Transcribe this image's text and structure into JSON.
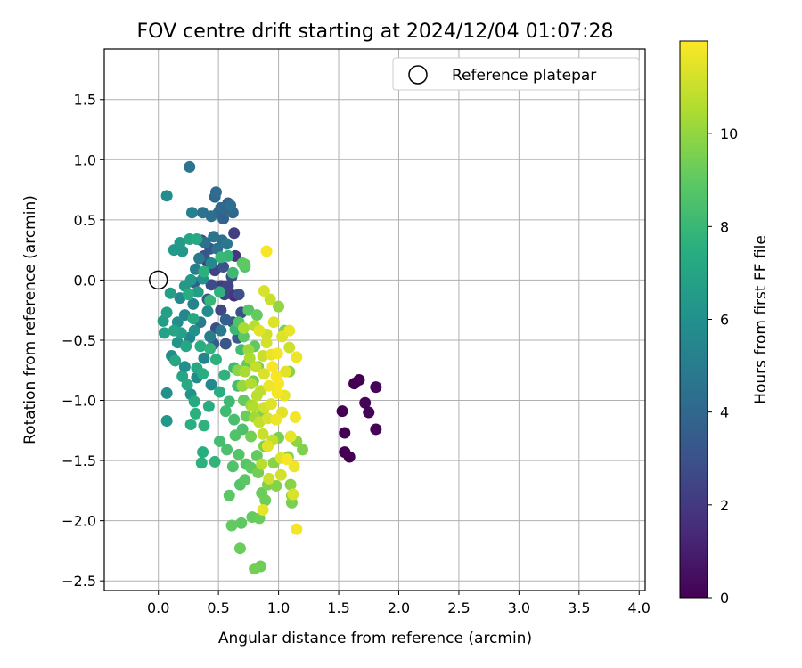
{
  "chart_data": {
    "type": "scatter",
    "title": "FOV centre drift starting at 2024/12/04 01:07:28",
    "xlabel": "Angular distance from reference (arcmin)",
    "ylabel": "Rotation from reference (arcmin)",
    "xlim": [
      -0.45,
      4.05
    ],
    "ylim": [
      -2.58,
      1.92
    ],
    "xticks": [
      0.0,
      0.5,
      1.0,
      1.5,
      2.0,
      2.5,
      3.0,
      3.5,
      4.0
    ],
    "xtick_labels": [
      "0.0",
      "0.5",
      "1.0",
      "1.5",
      "2.0",
      "2.5",
      "3.0",
      "3.5",
      "4.0"
    ],
    "yticks": [
      -2.5,
      -2.0,
      -1.5,
      -1.0,
      -0.5,
      0.0,
      0.5,
      1.0,
      1.5
    ],
    "ytick_labels": [
      "−2.5",
      "−2.0",
      "−1.5",
      "−1.0",
      "−0.5",
      "0.0",
      "0.5",
      "1.0",
      "1.5"
    ],
    "grid": true,
    "legend": {
      "position": "top-right",
      "entries": [
        "Reference platepar"
      ]
    },
    "reference_point": {
      "x": 0.0,
      "y": 0.0,
      "label": "Reference platepar",
      "marker": "open-circle"
    },
    "colorbar": {
      "label": "Hours from first FF file",
      "range": [
        0,
        12
      ],
      "ticks": [
        0,
        2,
        4,
        6,
        8,
        10
      ],
      "tick_labels": [
        "0",
        "2",
        "4",
        "6",
        "8",
        "10"
      ],
      "colormap": "viridis"
    },
    "points": [
      {
        "x": 1.53,
        "y": -1.09,
        "c": 0.0
      },
      {
        "x": 1.55,
        "y": -1.27,
        "c": 0.0
      },
      {
        "x": 1.55,
        "y": -1.43,
        "c": 0.0
      },
      {
        "x": 1.59,
        "y": -1.47,
        "c": 0.0
      },
      {
        "x": 1.63,
        "y": -0.86,
        "c": 0.0
      },
      {
        "x": 1.67,
        "y": -0.83,
        "c": 0.0
      },
      {
        "x": 1.72,
        "y": -1.02,
        "c": 0.1
      },
      {
        "x": 1.75,
        "y": -1.1,
        "c": 0.1
      },
      {
        "x": 1.81,
        "y": -0.89,
        "c": 0.1
      },
      {
        "x": 1.81,
        "y": -1.24,
        "c": 0.1
      },
      {
        "x": 0.63,
        "y": -0.13,
        "c": 1.5
      },
      {
        "x": 0.59,
        "y": -0.11,
        "c": 1.8
      },
      {
        "x": 0.52,
        "y": -0.05,
        "c": 2.1
      },
      {
        "x": 0.47,
        "y": 0.08,
        "c": 2.3
      },
      {
        "x": 0.55,
        "y": -0.12,
        "c": 2.4
      },
      {
        "x": 0.63,
        "y": 0.39,
        "c": 2.2
      },
      {
        "x": 0.64,
        "y": 0.2,
        "c": 1.9
      },
      {
        "x": 0.52,
        "y": -0.25,
        "c": 2.6
      },
      {
        "x": 0.48,
        "y": -0.4,
        "c": 2.8
      },
      {
        "x": 0.58,
        "y": -0.05,
        "c": 2.5
      },
      {
        "x": 0.41,
        "y": 0.15,
        "c": 2.2
      },
      {
        "x": 0.44,
        "y": -0.04,
        "c": 2.7
      },
      {
        "x": 0.67,
        "y": -0.12,
        "c": 2.9
      },
      {
        "x": 0.69,
        "y": -0.27,
        "c": 2.9
      },
      {
        "x": 0.36,
        "y": 0.33,
        "c": 3.0
      },
      {
        "x": 0.43,
        "y": 0.26,
        "c": 3.2
      },
      {
        "x": 0.38,
        "y": 0.2,
        "c": 3.1
      },
      {
        "x": 0.54,
        "y": 0.11,
        "c": 3.0
      },
      {
        "x": 0.61,
        "y": 0.03,
        "c": 2.7
      },
      {
        "x": 0.62,
        "y": -0.35,
        "c": 3.3
      },
      {
        "x": 0.46,
        "y": -0.53,
        "c": 3.4
      },
      {
        "x": 0.56,
        "y": -0.53,
        "c": 3.2
      },
      {
        "x": 0.66,
        "y": -0.48,
        "c": 3.5
      },
      {
        "x": 0.56,
        "y": -0.33,
        "c": 3.6
      },
      {
        "x": 0.3,
        "y": -0.02,
        "c": 3.6
      },
      {
        "x": 0.41,
        "y": -0.16,
        "c": 3.4
      },
      {
        "x": 0.5,
        "y": 0.56,
        "c": 3.8
      },
      {
        "x": 0.55,
        "y": 0.59,
        "c": 3.9
      },
      {
        "x": 0.58,
        "y": 0.64,
        "c": 3.7
      },
      {
        "x": 0.47,
        "y": 0.69,
        "c": 4.0
      },
      {
        "x": 0.48,
        "y": 0.73,
        "c": 4.2
      },
      {
        "x": 0.52,
        "y": 0.6,
        "c": 4.1
      },
      {
        "x": 0.54,
        "y": 0.51,
        "c": 3.8
      },
      {
        "x": 0.62,
        "y": 0.56,
        "c": 4.0
      },
      {
        "x": 0.6,
        "y": 0.62,
        "c": 4.3
      },
      {
        "x": 0.44,
        "y": 0.53,
        "c": 4.4
      },
      {
        "x": 0.37,
        "y": 0.56,
        "c": 4.5
      },
      {
        "x": 0.26,
        "y": 0.94,
        "c": 4.7
      },
      {
        "x": 0.46,
        "y": 0.36,
        "c": 4.6
      },
      {
        "x": 0.39,
        "y": 0.31,
        "c": 4.4
      },
      {
        "x": 0.53,
        "y": 0.33,
        "c": 4.3
      },
      {
        "x": 0.49,
        "y": 0.26,
        "c": 4.5
      },
      {
        "x": 0.57,
        "y": 0.3,
        "c": 4.8
      },
      {
        "x": 0.34,
        "y": 0.18,
        "c": 4.9
      },
      {
        "x": 0.28,
        "y": 0.56,
        "c": 5.2
      },
      {
        "x": 0.07,
        "y": 0.7,
        "c": 5.8
      },
      {
        "x": 0.31,
        "y": 0.09,
        "c": 5.1
      },
      {
        "x": 0.35,
        "y": -0.35,
        "c": 5.0
      },
      {
        "x": 0.29,
        "y": -0.2,
        "c": 5.3
      },
      {
        "x": 0.43,
        "y": -0.47,
        "c": 5.1
      },
      {
        "x": 0.22,
        "y": -0.29,
        "c": 5.5
      },
      {
        "x": 0.18,
        "y": -0.15,
        "c": 5.6
      },
      {
        "x": 0.52,
        "y": -0.42,
        "c": 4.9
      },
      {
        "x": 0.26,
        "y": -0.48,
        "c": 5.4
      },
      {
        "x": 0.11,
        "y": -0.63,
        "c": 5.8
      },
      {
        "x": 0.07,
        "y": -0.94,
        "c": 6.0
      },
      {
        "x": 0.07,
        "y": -1.17,
        "c": 6.3
      },
      {
        "x": 0.16,
        "y": -0.35,
        "c": 5.9
      },
      {
        "x": 0.38,
        "y": -0.65,
        "c": 5.4
      },
      {
        "x": 0.32,
        "y": -0.81,
        "c": 5.7
      },
      {
        "x": 0.22,
        "y": -0.72,
        "c": 5.9
      },
      {
        "x": 0.27,
        "y": -0.95,
        "c": 6.1
      },
      {
        "x": 0.44,
        "y": -0.87,
        "c": 5.6
      },
      {
        "x": 0.16,
        "y": -0.52,
        "c": 6.2
      },
      {
        "x": 0.3,
        "y": -0.42,
        "c": 6.0
      },
      {
        "x": 0.41,
        "y": -0.26,
        "c": 5.8
      },
      {
        "x": 0.44,
        "y": 0.14,
        "c": 5.6
      },
      {
        "x": 0.2,
        "y": 0.24,
        "c": 6.3
      },
      {
        "x": 0.13,
        "y": 0.25,
        "c": 6.4
      },
      {
        "x": 0.18,
        "y": 0.31,
        "c": 6.5
      },
      {
        "x": 0.27,
        "y": 0.0,
        "c": 6.5
      },
      {
        "x": 0.22,
        "y": -0.05,
        "c": 6.4
      },
      {
        "x": 0.37,
        "y": 0.01,
        "c": 6.1
      },
      {
        "x": 0.33,
        "y": -0.1,
        "c": 6.6
      },
      {
        "x": 0.1,
        "y": -0.11,
        "c": 6.7
      },
      {
        "x": 0.07,
        "y": -0.27,
        "c": 6.8
      },
      {
        "x": 0.04,
        "y": -0.34,
        "c": 6.6
      },
      {
        "x": 0.05,
        "y": -0.44,
        "c": 6.9
      },
      {
        "x": 0.13,
        "y": -0.42,
        "c": 7.0
      },
      {
        "x": 0.19,
        "y": -0.44,
        "c": 6.8
      },
      {
        "x": 0.23,
        "y": -0.55,
        "c": 7.1
      },
      {
        "x": 0.14,
        "y": -0.67,
        "c": 7.2
      },
      {
        "x": 0.2,
        "y": -0.8,
        "c": 7.0
      },
      {
        "x": 0.24,
        "y": -0.87,
        "c": 7.3
      },
      {
        "x": 0.32,
        "y": -0.73,
        "c": 7.2
      },
      {
        "x": 0.37,
        "y": -0.78,
        "c": 7.4
      },
      {
        "x": 0.3,
        "y": -1.01,
        "c": 7.3
      },
      {
        "x": 0.27,
        "y": -1.2,
        "c": 7.5
      },
      {
        "x": 0.31,
        "y": -1.11,
        "c": 7.6
      },
      {
        "x": 0.42,
        "y": -1.05,
        "c": 7.4
      },
      {
        "x": 0.38,
        "y": -1.21,
        "c": 7.7
      },
      {
        "x": 0.37,
        "y": -1.43,
        "c": 7.5
      },
      {
        "x": 0.36,
        "y": -1.52,
        "c": 7.6
      },
      {
        "x": 0.47,
        "y": -1.51,
        "c": 7.8
      },
      {
        "x": 0.51,
        "y": -0.93,
        "c": 7.5
      },
      {
        "x": 0.55,
        "y": -0.79,
        "c": 7.7
      },
      {
        "x": 0.48,
        "y": -0.66,
        "c": 7.6
      },
      {
        "x": 0.43,
        "y": -0.57,
        "c": 7.8
      },
      {
        "x": 0.35,
        "y": -0.55,
        "c": 7.5
      },
      {
        "x": 0.29,
        "y": -0.32,
        "c": 7.2
      },
      {
        "x": 0.25,
        "y": -0.12,
        "c": 7.4
      },
      {
        "x": 0.26,
        "y": 0.34,
        "c": 7.0
      },
      {
        "x": 0.32,
        "y": 0.34,
        "c": 7.3
      },
      {
        "x": 0.38,
        "y": 0.07,
        "c": 7.6
      },
      {
        "x": 0.43,
        "y": -0.17,
        "c": 7.9
      },
      {
        "x": 0.51,
        "y": -0.1,
        "c": 7.7
      },
      {
        "x": 0.58,
        "y": 0.2,
        "c": 7.9
      },
      {
        "x": 0.52,
        "y": 0.19,
        "c": 8.0
      },
      {
        "x": 0.62,
        "y": 0.06,
        "c": 8.1
      },
      {
        "x": 0.64,
        "y": -0.41,
        "c": 8.0
      },
      {
        "x": 0.69,
        "y": -0.58,
        "c": 8.2
      },
      {
        "x": 0.63,
        "y": -0.73,
        "c": 8.1
      },
      {
        "x": 0.66,
        "y": -0.88,
        "c": 8.3
      },
      {
        "x": 0.59,
        "y": -1.01,
        "c": 8.1
      },
      {
        "x": 0.63,
        "y": -1.16,
        "c": 8.4
      },
      {
        "x": 0.56,
        "y": -1.09,
        "c": 8.2
      },
      {
        "x": 0.51,
        "y": -1.34,
        "c": 8.3
      },
      {
        "x": 0.57,
        "y": -1.41,
        "c": 8.5
      },
      {
        "x": 0.64,
        "y": -1.29,
        "c": 8.6
      },
      {
        "x": 0.7,
        "y": -1.24,
        "c": 8.5
      },
      {
        "x": 0.67,
        "y": -1.45,
        "c": 8.7
      },
      {
        "x": 0.62,
        "y": -1.55,
        "c": 8.6
      },
      {
        "x": 0.73,
        "y": -1.53,
        "c": 8.8
      },
      {
        "x": 0.59,
        "y": -1.79,
        "c": 8.9
      },
      {
        "x": 0.68,
        "y": -1.7,
        "c": 8.7
      },
      {
        "x": 0.72,
        "y": -1.66,
        "c": 8.9
      },
      {
        "x": 0.77,
        "y": -1.56,
        "c": 9.0
      },
      {
        "x": 0.82,
        "y": -1.46,
        "c": 9.1
      },
      {
        "x": 0.86,
        "y": -1.77,
        "c": 9.2
      },
      {
        "x": 0.89,
        "y": -1.83,
        "c": 9.3
      },
      {
        "x": 0.84,
        "y": -1.98,
        "c": 9.2
      },
      {
        "x": 0.78,
        "y": -1.97,
        "c": 9.1
      },
      {
        "x": 0.69,
        "y": -2.02,
        "c": 9.0
      },
      {
        "x": 0.61,
        "y": -2.04,
        "c": 9.1
      },
      {
        "x": 0.68,
        "y": -2.23,
        "c": 9.2
      },
      {
        "x": 0.85,
        "y": -2.38,
        "c": 9.3
      },
      {
        "x": 0.8,
        "y": -2.4,
        "c": 9.4
      },
      {
        "x": 0.83,
        "y": -1.6,
        "c": 9.4
      },
      {
        "x": 0.91,
        "y": -1.7,
        "c": 9.6
      },
      {
        "x": 0.98,
        "y": -1.71,
        "c": 9.7
      },
      {
        "x": 1.1,
        "y": -1.7,
        "c": 9.8
      },
      {
        "x": 1.11,
        "y": -1.79,
        "c": 9.9
      },
      {
        "x": 1.11,
        "y": -1.85,
        "c": 9.5
      },
      {
        "x": 1.2,
        "y": -1.41,
        "c": 9.6
      },
      {
        "x": 1.15,
        "y": -1.34,
        "c": 9.9
      },
      {
        "x": 1.08,
        "y": -1.47,
        "c": 9.7
      },
      {
        "x": 1.0,
        "y": -1.31,
        "c": 9.5
      },
      {
        "x": 0.96,
        "y": -1.52,
        "c": 9.8
      },
      {
        "x": 0.88,
        "y": -1.38,
        "c": 9.6
      },
      {
        "x": 0.77,
        "y": -1.3,
        "c": 9.4
      },
      {
        "x": 0.73,
        "y": -1.13,
        "c": 9.2
      },
      {
        "x": 0.71,
        "y": -1.0,
        "c": 9.1
      },
      {
        "x": 0.79,
        "y": -0.84,
        "c": 9.3
      },
      {
        "x": 0.74,
        "y": -0.7,
        "c": 9.0
      },
      {
        "x": 0.71,
        "y": -0.47,
        "c": 8.9
      },
      {
        "x": 0.8,
        "y": -0.55,
        "c": 9.0
      },
      {
        "x": 0.75,
        "y": -0.25,
        "c": 8.8
      },
      {
        "x": 0.82,
        "y": -0.29,
        "c": 9.1
      },
      {
        "x": 0.67,
        "y": -0.35,
        "c": 8.6
      },
      {
        "x": 0.72,
        "y": 0.11,
        "c": 8.7
      },
      {
        "x": 0.7,
        "y": 0.14,
        "c": 8.9
      },
      {
        "x": 0.72,
        "y": 0.13,
        "c": 9.0
      },
      {
        "x": 0.83,
        "y": -0.72,
        "c": 9.5
      },
      {
        "x": 0.87,
        "y": -1.09,
        "c": 9.6
      },
      {
        "x": 1.05,
        "y": -0.42,
        "c": 9.7
      },
      {
        "x": 1.09,
        "y": -0.76,
        "c": 9.8
      },
      {
        "x": 1.0,
        "y": -0.22,
        "c": 10.0
      },
      {
        "x": 0.9,
        "y": 0.24,
        "c": 11.9
      },
      {
        "x": 0.88,
        "y": -0.09,
        "c": 11.3
      },
      {
        "x": 0.93,
        "y": -0.16,
        "c": 11.0
      },
      {
        "x": 0.84,
        "y": -0.42,
        "c": 11.5
      },
      {
        "x": 0.9,
        "y": -0.52,
        "c": 11.2
      },
      {
        "x": 0.8,
        "y": -0.38,
        "c": 10.7
      },
      {
        "x": 0.76,
        "y": -0.65,
        "c": 10.5
      },
      {
        "x": 0.81,
        "y": -0.72,
        "c": 10.9
      },
      {
        "x": 0.88,
        "y": -0.78,
        "c": 11.3
      },
      {
        "x": 0.94,
        "y": -0.62,
        "c": 11.6
      },
      {
        "x": 0.99,
        "y": -0.61,
        "c": 11.8
      },
      {
        "x": 1.03,
        "y": -0.47,
        "c": 11.4
      },
      {
        "x": 1.09,
        "y": -0.56,
        "c": 11.1
      },
      {
        "x": 1.15,
        "y": -0.64,
        "c": 11.7
      },
      {
        "x": 1.06,
        "y": -0.76,
        "c": 11.5
      },
      {
        "x": 0.98,
        "y": -0.8,
        "c": 11.9
      },
      {
        "x": 0.92,
        "y": -0.88,
        "c": 11.7
      },
      {
        "x": 0.99,
        "y": -0.94,
        "c": 11.8
      },
      {
        "x": 1.05,
        "y": -0.96,
        "c": 11.6
      },
      {
        "x": 0.94,
        "y": -1.03,
        "c": 11.4
      },
      {
        "x": 0.88,
        "y": -1.06,
        "c": 11.2
      },
      {
        "x": 0.82,
        "y": -0.96,
        "c": 10.8
      },
      {
        "x": 0.77,
        "y": -0.86,
        "c": 10.6
      },
      {
        "x": 0.72,
        "y": -0.76,
        "c": 10.4
      },
      {
        "x": 0.79,
        "y": -1.05,
        "c": 10.6
      },
      {
        "x": 0.84,
        "y": -1.18,
        "c": 10.9
      },
      {
        "x": 0.91,
        "y": -1.15,
        "c": 11.3
      },
      {
        "x": 0.98,
        "y": -1.16,
        "c": 11.7
      },
      {
        "x": 1.03,
        "y": -1.1,
        "c": 11.5
      },
      {
        "x": 1.14,
        "y": -1.14,
        "c": 11.8
      },
      {
        "x": 1.1,
        "y": -1.3,
        "c": 11.6
      },
      {
        "x": 1.02,
        "y": -1.48,
        "c": 11.4
      },
      {
        "x": 1.07,
        "y": -1.49,
        "c": 11.9
      },
      {
        "x": 1.13,
        "y": -1.55,
        "c": 11.7
      },
      {
        "x": 1.02,
        "y": -1.62,
        "c": 11.2
      },
      {
        "x": 0.92,
        "y": -1.65,
        "c": 11.1
      },
      {
        "x": 0.87,
        "y": -1.91,
        "c": 11.6
      },
      {
        "x": 1.12,
        "y": -1.78,
        "c": 11.3
      },
      {
        "x": 1.15,
        "y": -2.07,
        "c": 11.8
      },
      {
        "x": 0.87,
        "y": -1.28,
        "c": 11.0
      },
      {
        "x": 0.91,
        "y": -1.38,
        "c": 11.5
      },
      {
        "x": 0.86,
        "y": -1.53,
        "c": 10.7
      },
      {
        "x": 0.95,
        "y": -1.33,
        "c": 10.9
      },
      {
        "x": 0.8,
        "y": -1.14,
        "c": 10.3
      },
      {
        "x": 0.75,
        "y": -0.58,
        "c": 10.2
      },
      {
        "x": 0.9,
        "y": -0.45,
        "c": 11.1
      },
      {
        "x": 0.96,
        "y": -0.35,
        "c": 11.4
      },
      {
        "x": 1.09,
        "y": -0.42,
        "c": 11.6
      },
      {
        "x": 0.95,
        "y": -0.72,
        "c": 11.9
      },
      {
        "x": 1.0,
        "y": -0.86,
        "c": 11.9
      },
      {
        "x": 0.87,
        "y": -0.63,
        "c": 11.0
      },
      {
        "x": 0.71,
        "y": -0.4,
        "c": 10.4
      },
      {
        "x": 0.66,
        "y": -0.75,
        "c": 9.9
      },
      {
        "x": 0.7,
        "y": -0.88,
        "c": 10.1
      },
      {
        "x": 0.77,
        "y": -1.04,
        "c": 10.2
      },
      {
        "x": 0.85,
        "y": -0.92,
        "c": 10.8
      }
    ]
  }
}
